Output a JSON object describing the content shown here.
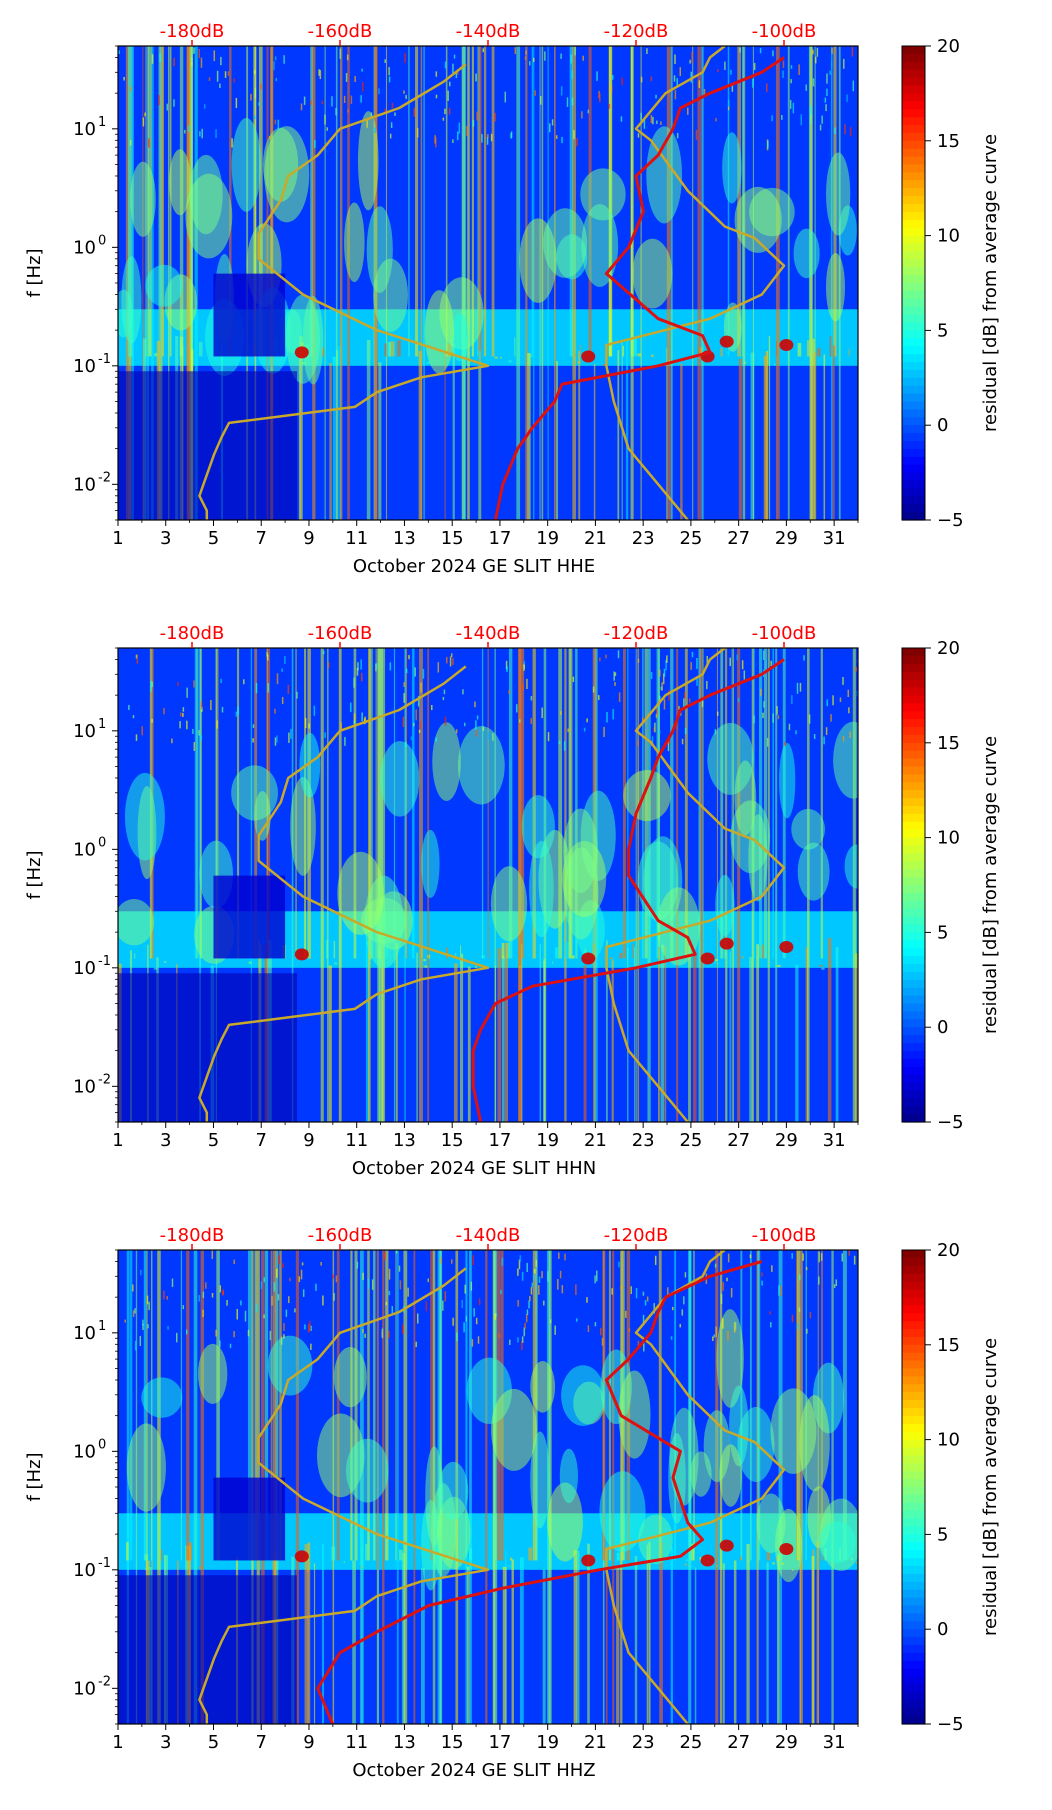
{
  "figure": {
    "colorbar": {
      "label": "residual [dB] from average curve",
      "ticks": [
        -5,
        0,
        5,
        10,
        15,
        20
      ],
      "range": [
        -5,
        20
      ],
      "colormap": "jet"
    },
    "top_axis_color": "#ff0000",
    "nlnm_nhnm_color": "#c8a92a",
    "median_psd_color": "#dd1111"
  },
  "chart_data": [
    {
      "type": "heatmap",
      "title": "",
      "xlabel": "October 2024 GE SLIT  HHE",
      "ylabel": "f [Hz]",
      "x_ticks": [
        "1",
        "3",
        "5",
        "7",
        "9",
        "11",
        "13",
        "15",
        "17",
        "19",
        "21",
        "23",
        "25",
        "27",
        "29",
        "31"
      ],
      "xlim": [
        1,
        32
      ],
      "y_ticks": [
        "10^-2",
        "10^-1",
        "10^0",
        "10^1"
      ],
      "ylim_hz": [
        0.005,
        50
      ],
      "yscale": "log",
      "top_axis_ticks": [
        "-180dB",
        "-160dB",
        "-140dB",
        "-120dB",
        "-100dB"
      ],
      "series": [
        {
          "x_db": [
            -178,
            -178,
            -179,
            -178,
            -177,
            -176,
            -175,
            -158,
            -155,
            -149,
            -140,
            -155,
            -165,
            -171,
            -171,
            -168,
            -167,
            -163,
            -160,
            -152,
            -146,
            -143
          ],
          "f_hz": [
            0.005,
            0.006,
            0.008,
            0.012,
            0.018,
            0.025,
            0.033,
            0.045,
            0.06,
            0.08,
            0.1,
            0.2,
            0.4,
            0.8,
            1.3,
            2.5,
            4,
            6,
            10,
            15,
            25,
            35
          ]
        },
        {
          "x_db": [
            -113,
            -117,
            -121,
            -123,
            -124,
            -124,
            -110,
            -103,
            -100,
            -104,
            -108,
            -113,
            -118,
            -120,
            -116,
            -111,
            -110,
            -108
          ],
          "f_hz": [
            0.005,
            0.01,
            0.02,
            0.05,
            0.1,
            0.15,
            0.25,
            0.4,
            0.7,
            1.2,
            1.5,
            3,
            8,
            10,
            20,
            30,
            40,
            50
          ]
        },
        {
          "x_db": [
            -139,
            -138,
            -136,
            -134,
            -131,
            -130,
            -117,
            -110,
            -111,
            -117,
            -124,
            -121,
            -119,
            -120,
            -117,
            -115,
            -114,
            -110,
            -103,
            -100
          ],
          "f_hz": [
            0.005,
            0.01,
            0.02,
            0.03,
            0.05,
            0.07,
            0.1,
            0.13,
            0.18,
            0.25,
            0.6,
            1.0,
            2.0,
            4,
            6,
            10,
            15,
            20,
            30,
            40
          ]
        }
      ]
    },
    {
      "type": "heatmap",
      "title": "",
      "xlabel": "October 2024 GE SLIT  HHN",
      "ylabel": "f [Hz]",
      "x_ticks": [
        "1",
        "3",
        "5",
        "7",
        "9",
        "11",
        "13",
        "15",
        "17",
        "19",
        "21",
        "23",
        "25",
        "27",
        "29",
        "31"
      ],
      "xlim": [
        1,
        32
      ],
      "y_ticks": [
        "10^-2",
        "10^-1",
        "10^0",
        "10^1"
      ],
      "ylim_hz": [
        0.005,
        50
      ],
      "yscale": "log",
      "top_axis_ticks": [
        "-180dB",
        "-160dB",
        "-140dB",
        "-120dB",
        "-100dB"
      ],
      "series": [
        {
          "x_db": [
            -178,
            -178,
            -179,
            -178,
            -177,
            -176,
            -175,
            -158,
            -155,
            -149,
            -140,
            -155,
            -165,
            -171,
            -171,
            -168,
            -167,
            -163,
            -160,
            -152,
            -146,
            -143
          ],
          "f_hz": [
            0.005,
            0.006,
            0.008,
            0.012,
            0.018,
            0.025,
            0.033,
            0.045,
            0.06,
            0.08,
            0.1,
            0.2,
            0.4,
            0.8,
            1.3,
            2.5,
            4,
            6,
            10,
            15,
            25,
            35
          ]
        },
        {
          "x_db": [
            -113,
            -117,
            -121,
            -123,
            -124,
            -124,
            -110,
            -103,
            -100,
            -104,
            -108,
            -113,
            -118,
            -120,
            -116,
            -111,
            -110,
            -108
          ],
          "f_hz": [
            0.005,
            0.01,
            0.02,
            0.05,
            0.1,
            0.15,
            0.25,
            0.4,
            0.7,
            1.2,
            1.5,
            3,
            8,
            10,
            20,
            30,
            40,
            50
          ]
        },
        {
          "x_db": [
            -141,
            -142,
            -142,
            -141,
            -139,
            -134,
            -120,
            -112,
            -113,
            -117,
            -121,
            -121,
            -120,
            -118,
            -117,
            -115,
            -114,
            -110,
            -103,
            -100
          ],
          "f_hz": [
            0.005,
            0.01,
            0.02,
            0.03,
            0.05,
            0.07,
            0.1,
            0.13,
            0.18,
            0.25,
            0.6,
            1.0,
            2.0,
            4,
            6,
            10,
            15,
            20,
            30,
            40
          ]
        }
      ]
    },
    {
      "type": "heatmap",
      "title": "",
      "xlabel": "October 2024 GE SLIT  HHZ",
      "ylabel": "f [Hz]",
      "x_ticks": [
        "1",
        "3",
        "5",
        "7",
        "9",
        "11",
        "13",
        "15",
        "17",
        "19",
        "21",
        "23",
        "25",
        "27",
        "29",
        "31"
      ],
      "xlim": [
        1,
        32
      ],
      "y_ticks": [
        "10^-2",
        "10^-1",
        "10^0",
        "10^1"
      ],
      "ylim_hz": [
        0.005,
        50
      ],
      "yscale": "log",
      "top_axis_ticks": [
        "-180dB",
        "-160dB",
        "-140dB",
        "-120dB",
        "-100dB"
      ],
      "series": [
        {
          "x_db": [
            -178,
            -178,
            -179,
            -178,
            -177,
            -176,
            -175,
            -158,
            -155,
            -149,
            -140,
            -155,
            -165,
            -171,
            -171,
            -168,
            -167,
            -163,
            -160,
            -152,
            -146,
            -143
          ],
          "f_hz": [
            0.005,
            0.006,
            0.008,
            0.012,
            0.018,
            0.025,
            0.033,
            0.045,
            0.06,
            0.08,
            0.1,
            0.2,
            0.4,
            0.8,
            1.3,
            2.5,
            4,
            6,
            10,
            15,
            25,
            35
          ]
        },
        {
          "x_db": [
            -113,
            -117,
            -121,
            -123,
            -124,
            -124,
            -110,
            -103,
            -100,
            -104,
            -108,
            -113,
            -118,
            -120,
            -116,
            -111,
            -110,
            -108
          ],
          "f_hz": [
            0.005,
            0.01,
            0.02,
            0.05,
            0.1,
            0.15,
            0.25,
            0.4,
            0.7,
            1.2,
            1.5,
            3,
            8,
            10,
            20,
            30,
            40,
            50
          ]
        },
        {
          "x_db": [
            -161,
            -163,
            -160,
            -155,
            -148,
            -138,
            -125,
            -114,
            -111,
            -113,
            -115,
            -114,
            -122,
            -124,
            -121,
            -118,
            -117,
            -116,
            -110,
            -103
          ],
          "f_hz": [
            0.005,
            0.01,
            0.02,
            0.03,
            0.05,
            0.07,
            0.1,
            0.13,
            0.18,
            0.25,
            0.6,
            1.0,
            2.0,
            4,
            6,
            10,
            15,
            20,
            30,
            40
          ]
        }
      ]
    }
  ]
}
